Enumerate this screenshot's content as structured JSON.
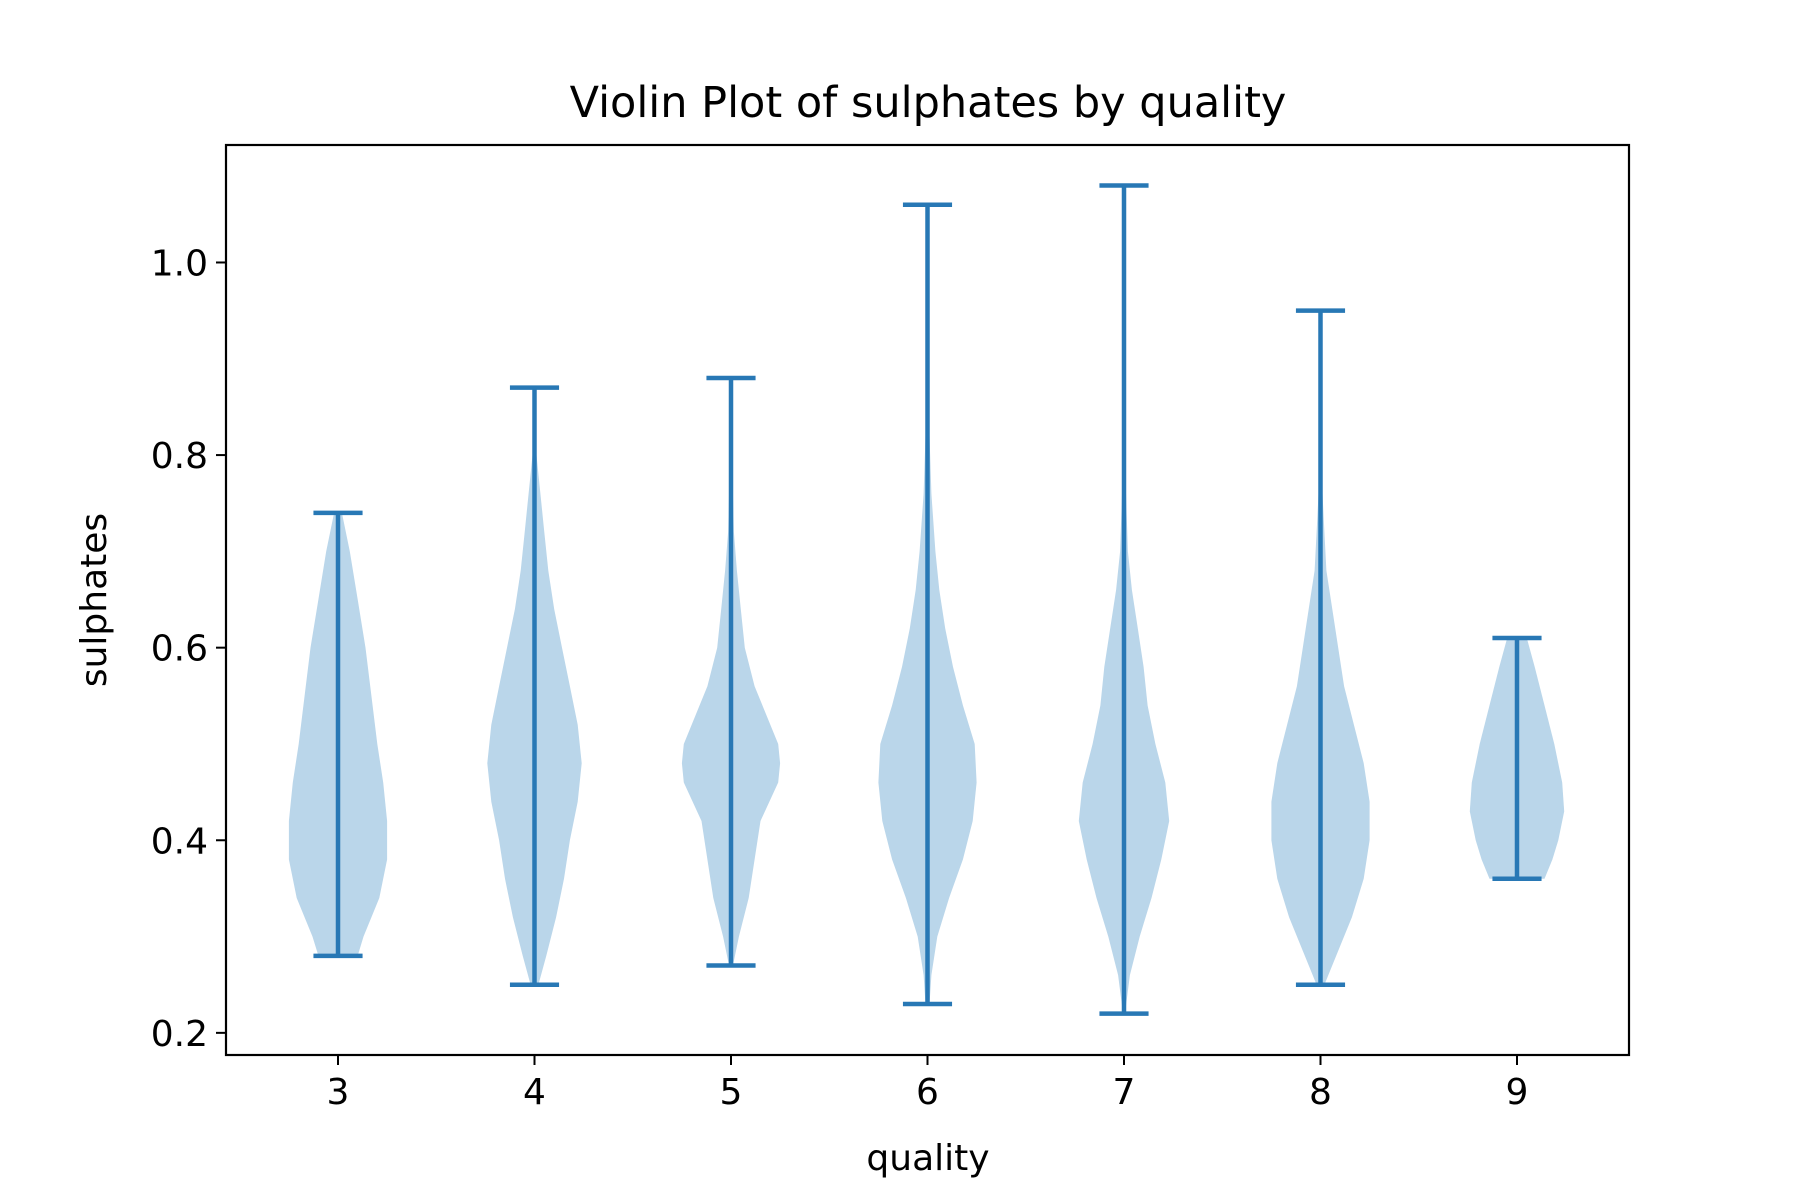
{
  "chart_data": {
    "type": "violin",
    "title": "Violin Plot of sulphates by quality",
    "xlabel": "quality",
    "ylabel": "sulphates",
    "categories": [
      "3",
      "4",
      "5",
      "6",
      "7",
      "8",
      "9"
    ],
    "xlim": [
      2.43,
      9.57
    ],
    "ylim": [
      0.177,
      1.122
    ],
    "yticks": [
      0.2,
      0.4,
      0.6,
      0.8,
      1.0
    ],
    "ytick_labels": [
      "0.2",
      "0.4",
      "0.6",
      "0.8",
      "1.0"
    ],
    "grid": false,
    "colors": {
      "body": "#bad6ea",
      "lines": "#2878b5"
    },
    "violins": [
      {
        "category": "3",
        "min": 0.28,
        "max": 0.74,
        "profile": [
          [
            0.28,
            0.1
          ],
          [
            0.3,
            0.13
          ],
          [
            0.34,
            0.21
          ],
          [
            0.38,
            0.25
          ],
          [
            0.42,
            0.25
          ],
          [
            0.46,
            0.23
          ],
          [
            0.5,
            0.2
          ],
          [
            0.55,
            0.17
          ],
          [
            0.6,
            0.14
          ],
          [
            0.65,
            0.1
          ],
          [
            0.7,
            0.06
          ],
          [
            0.74,
            0.02
          ]
        ]
      },
      {
        "category": "4",
        "min": 0.25,
        "max": 0.87,
        "profile": [
          [
            0.25,
            0.02
          ],
          [
            0.28,
            0.06
          ],
          [
            0.32,
            0.11
          ],
          [
            0.36,
            0.15
          ],
          [
            0.4,
            0.18
          ],
          [
            0.44,
            0.22
          ],
          [
            0.48,
            0.24
          ],
          [
            0.52,
            0.22
          ],
          [
            0.56,
            0.18
          ],
          [
            0.6,
            0.14
          ],
          [
            0.64,
            0.1
          ],
          [
            0.68,
            0.07
          ],
          [
            0.72,
            0.05
          ],
          [
            0.76,
            0.03
          ],
          [
            0.8,
            0.01
          ],
          [
            0.87,
            0.005
          ]
        ]
      },
      {
        "category": "5",
        "min": 0.27,
        "max": 0.88,
        "profile": [
          [
            0.27,
            0.01
          ],
          [
            0.3,
            0.04
          ],
          [
            0.34,
            0.09
          ],
          [
            0.38,
            0.12
          ],
          [
            0.42,
            0.15
          ],
          [
            0.46,
            0.24
          ],
          [
            0.48,
            0.25
          ],
          [
            0.5,
            0.24
          ],
          [
            0.53,
            0.18
          ],
          [
            0.56,
            0.12
          ],
          [
            0.6,
            0.07
          ],
          [
            0.64,
            0.05
          ],
          [
            0.68,
            0.03
          ],
          [
            0.72,
            0.015
          ],
          [
            0.8,
            0.005
          ],
          [
            0.88,
            0.002
          ]
        ]
      },
      {
        "category": "6",
        "min": 0.23,
        "max": 1.06,
        "profile": [
          [
            0.23,
            0.01
          ],
          [
            0.26,
            0.02
          ],
          [
            0.3,
            0.05
          ],
          [
            0.34,
            0.11
          ],
          [
            0.38,
            0.18
          ],
          [
            0.42,
            0.23
          ],
          [
            0.46,
            0.25
          ],
          [
            0.5,
            0.24
          ],
          [
            0.54,
            0.18
          ],
          [
            0.58,
            0.13
          ],
          [
            0.62,
            0.09
          ],
          [
            0.66,
            0.06
          ],
          [
            0.7,
            0.04
          ],
          [
            0.76,
            0.02
          ],
          [
            0.82,
            0.01
          ],
          [
            0.9,
            0.004
          ],
          [
            1.06,
            0.001
          ]
        ]
      },
      {
        "category": "7",
        "min": 0.22,
        "max": 1.08,
        "profile": [
          [
            0.22,
            0.005
          ],
          [
            0.26,
            0.03
          ],
          [
            0.3,
            0.08
          ],
          [
            0.34,
            0.14
          ],
          [
            0.38,
            0.19
          ],
          [
            0.42,
            0.23
          ],
          [
            0.46,
            0.21
          ],
          [
            0.5,
            0.16
          ],
          [
            0.54,
            0.12
          ],
          [
            0.58,
            0.1
          ],
          [
            0.62,
            0.07
          ],
          [
            0.66,
            0.04
          ],
          [
            0.7,
            0.02
          ],
          [
            0.76,
            0.01
          ],
          [
            0.84,
            0.004
          ],
          [
            1.08,
            0.001
          ]
        ]
      },
      {
        "category": "8",
        "min": 0.25,
        "max": 0.95,
        "profile": [
          [
            0.25,
            0.02
          ],
          [
            0.28,
            0.08
          ],
          [
            0.32,
            0.16
          ],
          [
            0.36,
            0.22
          ],
          [
            0.4,
            0.25
          ],
          [
            0.44,
            0.25
          ],
          [
            0.48,
            0.22
          ],
          [
            0.52,
            0.17
          ],
          [
            0.56,
            0.12
          ],
          [
            0.6,
            0.09
          ],
          [
            0.64,
            0.06
          ],
          [
            0.68,
            0.03
          ],
          [
            0.72,
            0.02
          ],
          [
            0.76,
            0.01
          ],
          [
            0.82,
            0.005
          ],
          [
            0.95,
            0.001
          ]
        ]
      },
      {
        "category": "9",
        "min": 0.36,
        "max": 0.61,
        "profile": [
          [
            0.36,
            0.14
          ],
          [
            0.38,
            0.18
          ],
          [
            0.4,
            0.21
          ],
          [
            0.43,
            0.24
          ],
          [
            0.46,
            0.23
          ],
          [
            0.5,
            0.19
          ],
          [
            0.54,
            0.14
          ],
          [
            0.58,
            0.09
          ],
          [
            0.61,
            0.05
          ]
        ]
      }
    ]
  }
}
